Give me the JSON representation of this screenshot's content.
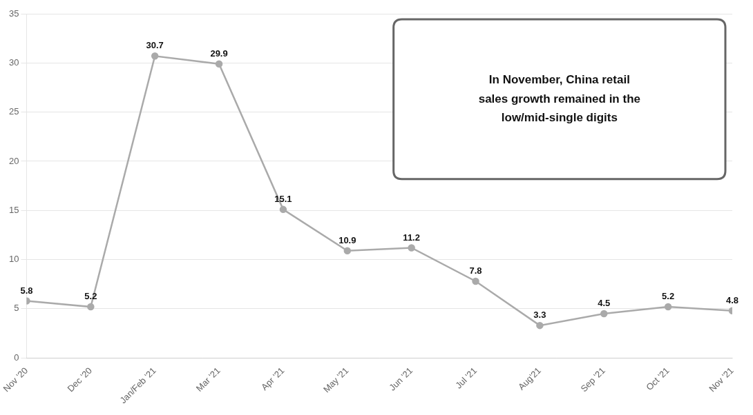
{
  "chart_data": {
    "type": "line",
    "categories": [
      "Nov '20",
      "Dec '20",
      "Jan/Feb '21",
      "Mar '21",
      "Apr '21",
      "May '21",
      "Jun '21",
      "Jul '21",
      "Aug'21",
      "Sep '21",
      "Oct '21",
      "Nov '21"
    ],
    "values": [
      5.8,
      5.2,
      30.7,
      29.9,
      15.1,
      10.9,
      11.2,
      7.8,
      3.3,
      4.5,
      5.2,
      4.8
    ],
    "color": "#aaaaaa",
    "marker": "circle",
    "ylim": [
      0,
      35
    ],
    "yticks": [
      0,
      5,
      10,
      15,
      20,
      25,
      30,
      35
    ],
    "grid": true,
    "data_labels": true,
    "annotations": [
      "In November, China retail\nsales growth remained in the\nlow/mid-single digits"
    ]
  }
}
